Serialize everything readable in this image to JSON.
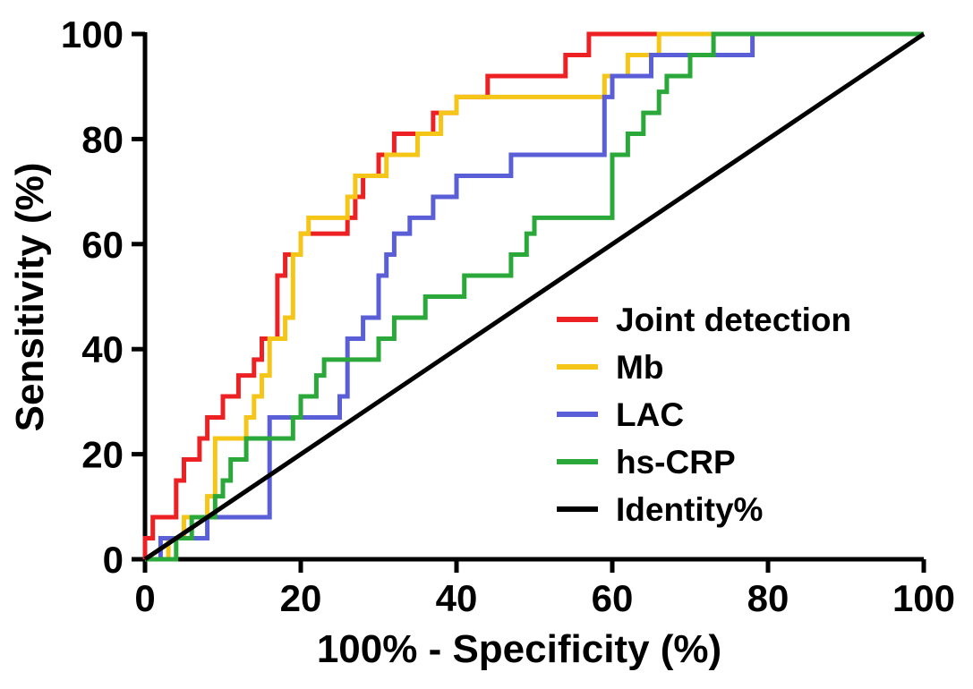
{
  "chart_data": {
    "type": "line",
    "subtype": "roc-step-curves",
    "title": "",
    "xlabel": "100% - Specificity (%)",
    "ylabel": "Sensitivity (%)",
    "xlim": [
      0,
      100
    ],
    "ylim": [
      0,
      100
    ],
    "xticks": [
      0,
      20,
      40,
      60,
      80,
      100
    ],
    "yticks": [
      0,
      20,
      40,
      60,
      80,
      100
    ],
    "grid": false,
    "legend_position": "inside-right",
    "axis_color": "#000000",
    "series": [
      {
        "name": "Joint detection",
        "color": "#ed2024",
        "points": [
          [
            0,
            0
          ],
          [
            0,
            4
          ],
          [
            1,
            4
          ],
          [
            1,
            8
          ],
          [
            4,
            8
          ],
          [
            4,
            15
          ],
          [
            5,
            15
          ],
          [
            5,
            19
          ],
          [
            7,
            19
          ],
          [
            7,
            23
          ],
          [
            8,
            23
          ],
          [
            8,
            27
          ],
          [
            10,
            27
          ],
          [
            10,
            31
          ],
          [
            12,
            31
          ],
          [
            12,
            35
          ],
          [
            14,
            35
          ],
          [
            14,
            38
          ],
          [
            15,
            38
          ],
          [
            15,
            42
          ],
          [
            17,
            42
          ],
          [
            17,
            54
          ],
          [
            18,
            54
          ],
          [
            18,
            58
          ],
          [
            20,
            58
          ],
          [
            20,
            62
          ],
          [
            26,
            62
          ],
          [
            26,
            65
          ],
          [
            27,
            65
          ],
          [
            27,
            69
          ],
          [
            28,
            69
          ],
          [
            28,
            73
          ],
          [
            30,
            73
          ],
          [
            30,
            77
          ],
          [
            32,
            77
          ],
          [
            32,
            81
          ],
          [
            37,
            81
          ],
          [
            37,
            85
          ],
          [
            40,
            85
          ],
          [
            40,
            88
          ],
          [
            44,
            88
          ],
          [
            44,
            92
          ],
          [
            54,
            92
          ],
          [
            54,
            96
          ],
          [
            57,
            96
          ],
          [
            57,
            100
          ],
          [
            100,
            100
          ]
        ]
      },
      {
        "name": "Mb",
        "color": "#f5c518",
        "points": [
          [
            0,
            0
          ],
          [
            3,
            0
          ],
          [
            3,
            4
          ],
          [
            5,
            4
          ],
          [
            5,
            8
          ],
          [
            8,
            8
          ],
          [
            8,
            12
          ],
          [
            9,
            12
          ],
          [
            9,
            23
          ],
          [
            13,
            23
          ],
          [
            13,
            27
          ],
          [
            14,
            27
          ],
          [
            14,
            31
          ],
          [
            15,
            31
          ],
          [
            15,
            35
          ],
          [
            16,
            35
          ],
          [
            16,
            42
          ],
          [
            18,
            42
          ],
          [
            18,
            46
          ],
          [
            19,
            46
          ],
          [
            19,
            58
          ],
          [
            20,
            58
          ],
          [
            20,
            62
          ],
          [
            21,
            62
          ],
          [
            21,
            65
          ],
          [
            26,
            65
          ],
          [
            26,
            69
          ],
          [
            27,
            69
          ],
          [
            27,
            73
          ],
          [
            31,
            73
          ],
          [
            31,
            77
          ],
          [
            35,
            77
          ],
          [
            35,
            81
          ],
          [
            38,
            81
          ],
          [
            38,
            85
          ],
          [
            40,
            85
          ],
          [
            40,
            88
          ],
          [
            59,
            88
          ],
          [
            59,
            92
          ],
          [
            62,
            92
          ],
          [
            62,
            96
          ],
          [
            66,
            96
          ],
          [
            66,
            100
          ],
          [
            100,
            100
          ]
        ]
      },
      {
        "name": "LAC",
        "color": "#5a5fd8",
        "points": [
          [
            0,
            0
          ],
          [
            2,
            0
          ],
          [
            2,
            4
          ],
          [
            8,
            4
          ],
          [
            8,
            8
          ],
          [
            16,
            8
          ],
          [
            16,
            27
          ],
          [
            25,
            27
          ],
          [
            25,
            31
          ],
          [
            26,
            31
          ],
          [
            26,
            42
          ],
          [
            28,
            42
          ],
          [
            28,
            46
          ],
          [
            30,
            46
          ],
          [
            30,
            54
          ],
          [
            31,
            54
          ],
          [
            31,
            58
          ],
          [
            32,
            58
          ],
          [
            32,
            62
          ],
          [
            34,
            62
          ],
          [
            34,
            65
          ],
          [
            37,
            65
          ],
          [
            37,
            69
          ],
          [
            40,
            69
          ],
          [
            40,
            73
          ],
          [
            47,
            73
          ],
          [
            47,
            77
          ],
          [
            59,
            77
          ],
          [
            59,
            88
          ],
          [
            60,
            88
          ],
          [
            60,
            92
          ],
          [
            65,
            92
          ],
          [
            65,
            96
          ],
          [
            78,
            96
          ],
          [
            78,
            100
          ],
          [
            100,
            100
          ]
        ]
      },
      {
        "name": "hs-CRP",
        "color": "#2aa839",
        "points": [
          [
            0,
            0
          ],
          [
            4,
            0
          ],
          [
            4,
            4
          ],
          [
            6,
            4
          ],
          [
            6,
            8
          ],
          [
            9,
            8
          ],
          [
            9,
            12
          ],
          [
            10,
            12
          ],
          [
            10,
            15
          ],
          [
            11,
            15
          ],
          [
            11,
            19
          ],
          [
            13,
            19
          ],
          [
            13,
            23
          ],
          [
            19,
            23
          ],
          [
            19,
            27
          ],
          [
            20,
            27
          ],
          [
            20,
            31
          ],
          [
            22,
            31
          ],
          [
            22,
            35
          ],
          [
            23,
            35
          ],
          [
            23,
            38
          ],
          [
            30,
            38
          ],
          [
            30,
            42
          ],
          [
            32,
            42
          ],
          [
            32,
            46
          ],
          [
            36,
            46
          ],
          [
            36,
            50
          ],
          [
            41,
            50
          ],
          [
            41,
            54
          ],
          [
            47,
            54
          ],
          [
            47,
            58
          ],
          [
            49,
            58
          ],
          [
            49,
            62
          ],
          [
            50,
            62
          ],
          [
            50,
            65
          ],
          [
            60,
            65
          ],
          [
            60,
            77
          ],
          [
            62,
            77
          ],
          [
            62,
            81
          ],
          [
            64,
            81
          ],
          [
            64,
            85
          ],
          [
            66,
            85
          ],
          [
            66,
            89
          ],
          [
            67,
            89
          ],
          [
            67,
            92
          ],
          [
            70,
            92
          ],
          [
            70,
            96
          ],
          [
            73,
            96
          ],
          [
            73,
            100
          ],
          [
            100,
            100
          ]
        ]
      },
      {
        "name": "Identity%",
        "color": "#000000",
        "points": [
          [
            0,
            0
          ],
          [
            100,
            100
          ]
        ]
      }
    ]
  }
}
